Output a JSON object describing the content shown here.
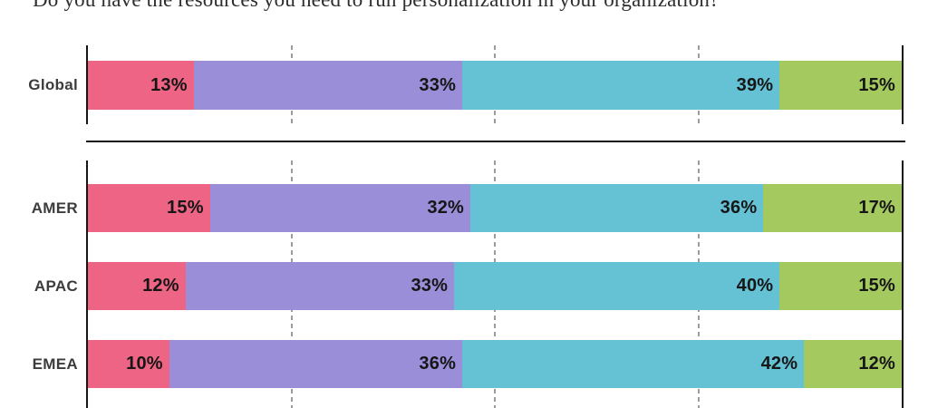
{
  "title": "Do you have the resources you need to run personalization in your organization?",
  "colors": {
    "pink": "#ED6484",
    "purple": "#9A8ED8",
    "teal": "#65C2D5",
    "green": "#A4C95F",
    "axis": "#151515",
    "gridline": "#9C9C9C",
    "value_text": "#161616",
    "row_label_text": "#3C3C3C"
  },
  "chart_data": {
    "type": "bar",
    "stacked": true,
    "orientation": "horizontal",
    "unit": "%",
    "xlim": [
      0,
      100
    ],
    "grid": "dashed-vertical",
    "gridlines_percent": [
      25,
      50,
      75
    ],
    "legend": "none",
    "title": "Do you have the resources you need to run personalization in your organization?",
    "segment_colors": [
      "#ED6484",
      "#9A8ED8",
      "#65C2D5",
      "#A4C95F"
    ],
    "groups": [
      {
        "name": "global",
        "rows": [
          {
            "label": "Global",
            "values": [
              13,
              33,
              39,
              15
            ],
            "value_labels": [
              "13%",
              "33%",
              "39%",
              "15%"
            ]
          }
        ]
      },
      {
        "name": "regions",
        "rows": [
          {
            "label": "AMER",
            "values": [
              15,
              32,
              36,
              17
            ],
            "value_labels": [
              "15%",
              "32%",
              "36%",
              "17%"
            ]
          },
          {
            "label": "APAC",
            "values": [
              12,
              33,
              40,
              15
            ],
            "value_labels": [
              "12%",
              "33%",
              "40%",
              "15%"
            ]
          },
          {
            "label": "EMEA",
            "values": [
              10,
              36,
              42,
              12
            ],
            "value_labels": [
              "10%",
              "36%",
              "42%",
              "12%"
            ]
          }
        ]
      }
    ]
  }
}
